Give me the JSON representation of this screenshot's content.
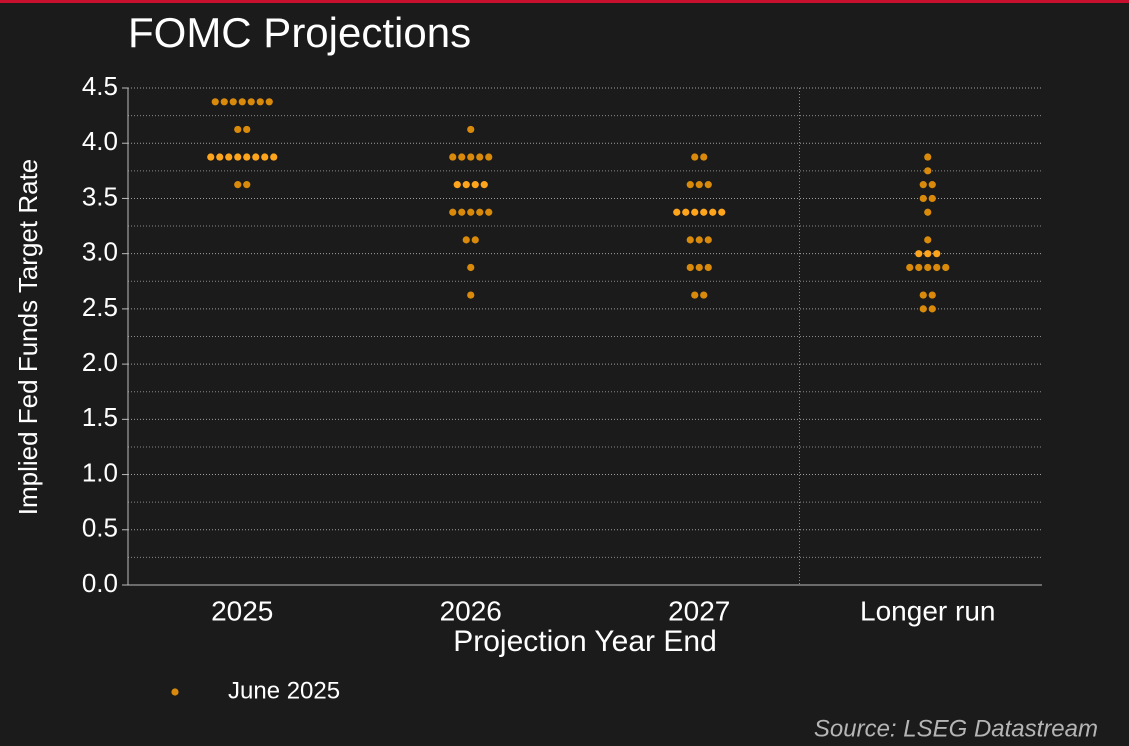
{
  "chart_data": {
    "type": "dot",
    "title": "FOMC Projections",
    "x_label": "Projection Year End",
    "y_label": "Implied Fed Funds Target Rate",
    "source": "Source: LSEG Datastream",
    "categories": [
      "2025",
      "2026",
      "2027",
      "Longer run"
    ],
    "series": [
      {
        "name": "June 2025",
        "color": "#d98a0b",
        "median_color": "#ffa51c",
        "values": [
          [
            4.375,
            4.375,
            4.375,
            4.375,
            4.375,
            4.375,
            4.375,
            4.125,
            4.125,
            3.875,
            3.875,
            3.875,
            3.875,
            3.875,
            3.875,
            3.875,
            3.875,
            3.625,
            3.625
          ],
          [
            4.125,
            3.875,
            3.875,
            3.875,
            3.875,
            3.875,
            3.625,
            3.625,
            3.625,
            3.625,
            3.375,
            3.375,
            3.375,
            3.375,
            3.375,
            3.125,
            3.125,
            2.875,
            2.625
          ],
          [
            3.875,
            3.875,
            3.625,
            3.625,
            3.625,
            3.375,
            3.375,
            3.375,
            3.375,
            3.375,
            3.375,
            3.125,
            3.125,
            3.125,
            2.875,
            2.875,
            2.875,
            2.625,
            2.625
          ],
          [
            3.875,
            3.75,
            3.625,
            3.625,
            3.5,
            3.5,
            3.375,
            3.125,
            3.0,
            3.0,
            3.0,
            2.875,
            2.875,
            2.875,
            2.875,
            2.875,
            2.625,
            2.625,
            2.5,
            2.5
          ]
        ],
        "medians": [
          3.875,
          3.625,
          3.375,
          3.0
        ]
      }
    ],
    "ylim": [
      0,
      4.5
    ],
    "yticks": [
      {
        "value": 0,
        "label": "0.0"
      },
      0.5,
      {
        "value": 1,
        "label": "1.0"
      },
      1.5,
      {
        "value": 2,
        "label": "2.0"
      },
      2.5,
      {
        "value": 3,
        "label": "3.0"
      },
      3.5,
      {
        "value": 4,
        "label": "4.0"
      },
      4.5
    ],
    "yminorticks": [
      0.25,
      0.75,
      1.25,
      1.75,
      2.25,
      2.75,
      3.25,
      3.75,
      4.25
    ],
    "grid": true,
    "separator_before_last": true
  }
}
